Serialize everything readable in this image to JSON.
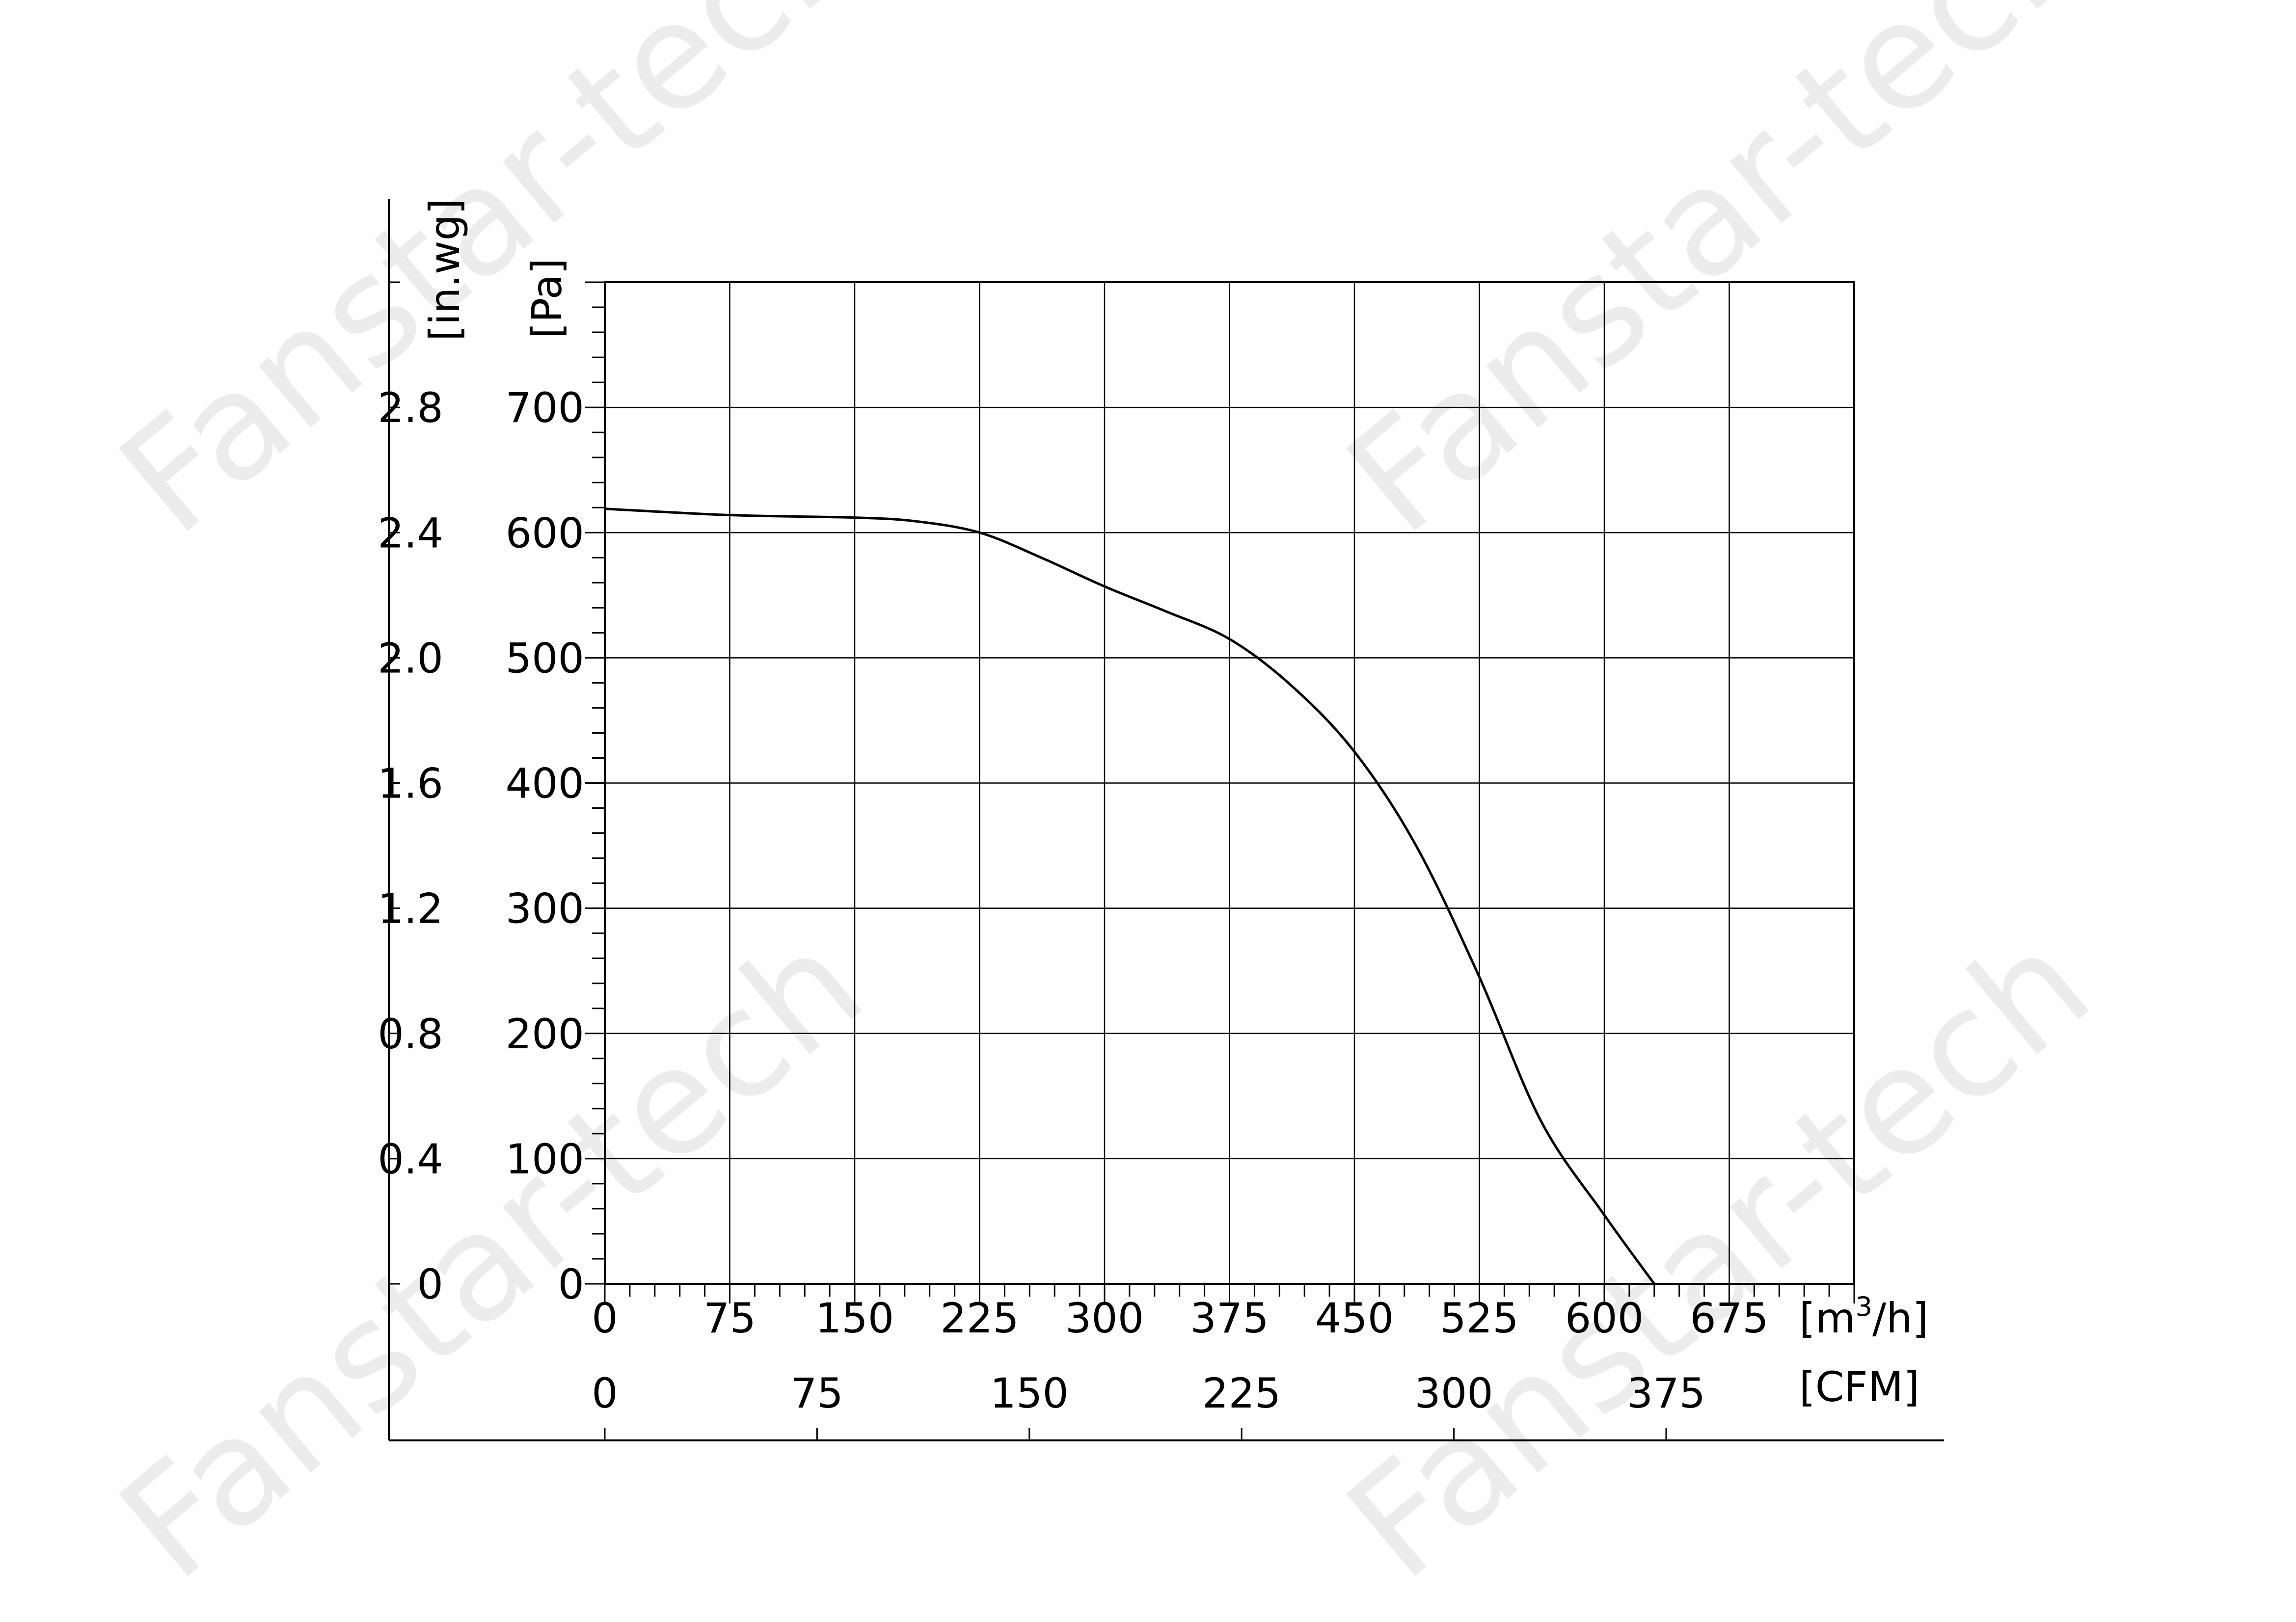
{
  "watermark": "Fanstar-tech",
  "chart_data": {
    "type": "line",
    "title": "",
    "grid": true,
    "x_primary": {
      "unit": "[m3/h]",
      "unit_base": "[m",
      "unit_sup": "3",
      "unit_tail": "/h]",
      "range": [
        0,
        750
      ],
      "ticks": [
        0,
        75,
        150,
        225,
        300,
        375,
        450,
        525,
        600,
        675
      ],
      "grid_step": 75,
      "minor_step": 15
    },
    "x_secondary": {
      "unit": "[CFM]",
      "ticks": [
        0,
        75,
        150,
        225,
        300,
        375
      ]
    },
    "y_primary": {
      "unit": "[Pa]",
      "range": [
        0,
        800
      ],
      "ticks": [
        0,
        100,
        200,
        300,
        400,
        500,
        600,
        700
      ],
      "grid_step": 100,
      "minor_step": 20
    },
    "y_secondary": {
      "unit": "[in.wg]",
      "ticks": [
        "0",
        "0.4",
        "0.8",
        "1.2",
        "1.6",
        "2.0",
        "2.4",
        "2.8"
      ]
    },
    "series": [
      {
        "color": "#000000",
        "points": [
          [
            0,
            619
          ],
          [
            75,
            614
          ],
          [
            150,
            612
          ],
          [
            187,
            609
          ],
          [
            225,
            600
          ],
          [
            262,
            580
          ],
          [
            300,
            557
          ],
          [
            337,
            537
          ],
          [
            375,
            515
          ],
          [
            412,
            478
          ],
          [
            450,
            425
          ],
          [
            487,
            350
          ],
          [
            525,
            245
          ],
          [
            562,
            130
          ],
          [
            600,
            55
          ],
          [
            630,
            0
          ]
        ]
      }
    ]
  }
}
